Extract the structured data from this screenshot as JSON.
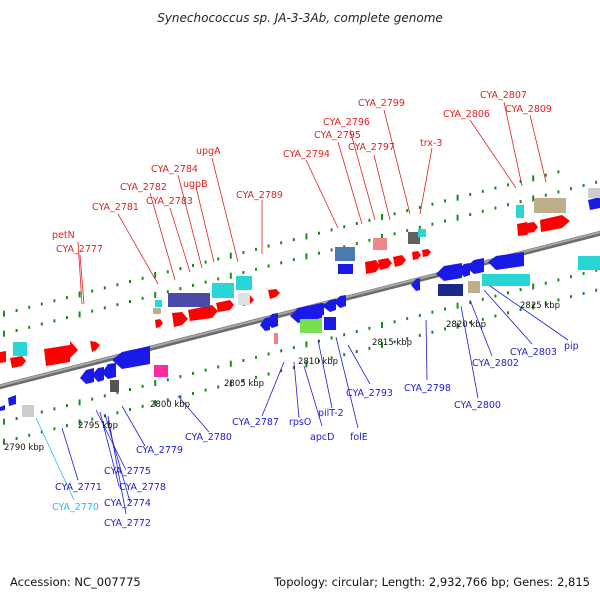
{
  "title": "Synechococcus sp. JA-3-3Ab, complete genome",
  "accession": "Accession: NC_007775",
  "topology": "Topology: circular; Length: 2,932,766 bp; Genes: 2,815",
  "colors": {
    "forward_label": "#e02020",
    "reverse_label": "#1c1cd0",
    "rna_label": "#22bbee",
    "backbone": "#888888",
    "tick": "#1a8a1a"
  },
  "kbp_ticks": [
    {
      "label": "2790 kbp",
      "pos": 2790
    },
    {
      "label": "2795 kbp",
      "pos": 2795
    },
    {
      "label": "2800 kbp",
      "pos": 2800
    },
    {
      "label": "2805 kbp",
      "pos": 2805
    },
    {
      "label": "2810 kbp",
      "pos": 2810
    },
    {
      "label": "2815 kbp",
      "pos": 2815
    },
    {
      "label": "2820 kbp",
      "pos": 2820
    },
    {
      "label": "2825 kbp",
      "pos": 2825
    }
  ],
  "forward_labels": [
    "petN",
    "CYA_2777",
    "CYA_2781",
    "CYA_2782",
    "CYA_2783",
    "CYA_2784",
    "ugpB",
    "upgA",
    "CYA_2789",
    "CYA_2794",
    "CYA_2795",
    "CYA_2796",
    "CYA_2797",
    "CYA_2799",
    "trx-3",
    "CYA_2806",
    "CYA_2807",
    "CYA_2809"
  ],
  "reverse_labels": [
    "CYA_2771",
    "CYA_2770",
    "CYA_2774",
    "CYA_2772",
    "CYA_2775",
    "CYA_2778",
    "CYA_2779",
    "CYA_2780",
    "CYA_2787",
    "rpsO",
    "apcD",
    "pilT-2",
    "folE",
    "CYA_2793",
    "CYA_2798",
    "CYA_2800",
    "CYA_2802",
    "CYA_2803",
    "pip"
  ]
}
